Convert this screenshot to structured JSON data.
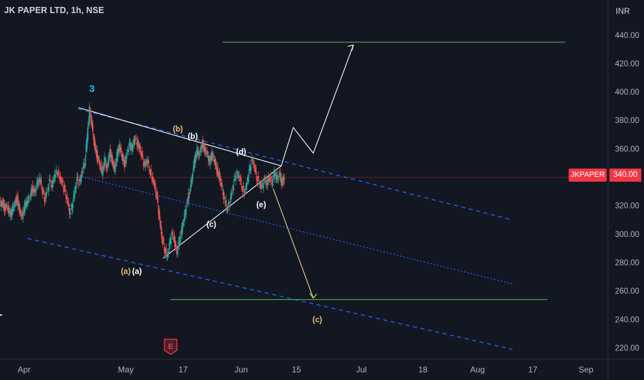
{
  "header": {
    "symbol_title": "JK PAPER LTD, 1h, NSE",
    "currency": "INR"
  },
  "price_tag": {
    "ticker": "JKPAPER",
    "price": "340.00"
  },
  "colors": {
    "background": "#131722",
    "up": "#26a69a",
    "down": "#ef5350",
    "channel": "#2962ff",
    "target_line": "#4caf50",
    "projection_down": "#f0d58c",
    "wave_labels_orange": "#e8c07a",
    "wave_labels_white": "#ffffff",
    "wave3_label": "#26c6da"
  },
  "icons": {
    "event": "earnings-e-icon"
  },
  "chart_data": {
    "type": "candlestick",
    "x_axis_labels": [
      "Apr",
      "May",
      "17",
      "Jun",
      "15",
      "Jul",
      "18",
      "Aug",
      "17",
      "Sep"
    ],
    "y_axis_labels": [
      "440.00",
      "420.00",
      "400.00",
      "380.00",
      "360.00",
      "340.00",
      "320.00",
      "300.00",
      "280.00",
      "260.00",
      "240.00",
      "220.00"
    ],
    "ylim": [
      212,
      453
    ],
    "current_price": 340,
    "wave_labels": [
      {
        "text": "3",
        "x": "Apr 21",
        "y": 400,
        "color": "cyan"
      },
      {
        "text": "(b)",
        "x": "May 15",
        "y": 372,
        "color": "orange"
      },
      {
        "text": "(b)",
        "x": "May 19",
        "y": 367,
        "color": "white"
      },
      {
        "text": "(d)",
        "x": "Jun 1",
        "y": 356,
        "color": "white"
      },
      {
        "text": "(e)",
        "x": "Jun 6",
        "y": 319,
        "color": "white"
      },
      {
        "text": "(c)",
        "x": "May 24",
        "y": 305,
        "color": "white"
      },
      {
        "text": "(a)",
        "x": "May 1",
        "y": 272,
        "color": "orange"
      },
      {
        "text": "(a)",
        "x": "May 4",
        "y": 272,
        "color": "white"
      },
      {
        "text": "(c)",
        "x": "Jun 20",
        "y": 238,
        "color": "orange"
      }
    ],
    "price_path": [
      [
        90.6,
        321
      ],
      [
        90.7,
        322
      ],
      [
        90.8,
        318
      ],
      [
        90.9,
        320
      ],
      [
        91.0,
        314
      ],
      [
        91.1,
        316
      ],
      [
        91.2,
        322
      ],
      [
        91.3,
        325
      ],
      [
        91.4,
        316
      ],
      [
        91.5,
        312
      ],
      [
        91.6,
        320
      ],
      [
        91.7,
        323
      ],
      [
        91.8,
        326
      ],
      [
        91.9,
        332
      ],
      [
        92.0,
        329
      ],
      [
        92.1,
        335
      ],
      [
        92.2,
        339
      ],
      [
        92.3,
        332
      ],
      [
        92.4,
        325
      ],
      [
        92.5,
        330
      ],
      [
        92.6,
        337
      ],
      [
        92.7,
        334
      ],
      [
        92.8,
        342
      ],
      [
        92.9,
        345
      ],
      [
        93.0,
        340
      ],
      [
        93.1,
        336
      ],
      [
        93.2,
        330
      ],
      [
        93.3,
        324
      ],
      [
        93.4,
        316
      ],
      [
        93.5,
        320
      ],
      [
        93.6,
        330
      ],
      [
        93.7,
        338
      ],
      [
        93.8,
        336
      ],
      [
        93.9,
        344
      ],
      [
        94.0,
        350
      ],
      [
        94.1,
        368
      ],
      [
        94.2,
        388
      ],
      [
        94.3,
        375
      ],
      [
        94.4,
        362
      ],
      [
        94.5,
        355
      ],
      [
        94.6,
        350
      ],
      [
        94.7,
        343
      ],
      [
        94.8,
        352
      ],
      [
        94.9,
        346
      ],
      [
        95.0,
        358
      ],
      [
        95.1,
        352
      ],
      [
        95.2,
        345
      ],
      [
        95.3,
        356
      ],
      [
        95.4,
        362
      ],
      [
        95.5,
        355
      ],
      [
        95.6,
        349
      ],
      [
        95.7,
        357
      ],
      [
        95.8,
        363
      ],
      [
        95.9,
        360
      ],
      [
        96.0,
        368
      ],
      [
        96.1,
        365
      ],
      [
        96.2,
        360
      ],
      [
        96.3,
        354
      ],
      [
        96.4,
        348
      ],
      [
        96.5,
        352
      ],
      [
        96.6,
        346
      ],
      [
        96.7,
        340
      ],
      [
        96.8,
        334
      ],
      [
        96.9,
        325
      ],
      [
        97.0,
        310
      ],
      [
        97.1,
        298
      ],
      [
        97.2,
        290
      ],
      [
        97.3,
        284
      ],
      [
        97.4,
        292
      ],
      [
        97.5,
        300
      ],
      [
        97.6,
        295
      ],
      [
        97.7,
        288
      ],
      [
        97.8,
        296
      ],
      [
        97.9,
        304
      ],
      [
        98.0,
        312
      ],
      [
        98.1,
        322
      ],
      [
        98.2,
        330
      ],
      [
        98.3,
        340
      ],
      [
        98.4,
        352
      ],
      [
        98.5,
        358
      ],
      [
        98.6,
        356
      ],
      [
        98.7,
        364
      ],
      [
        98.8,
        360
      ],
      [
        98.9,
        356
      ],
      [
        99.0,
        351
      ],
      [
        99.1,
        356
      ],
      [
        99.2,
        352
      ],
      [
        99.3,
        345
      ],
      [
        99.4,
        340
      ],
      [
        99.5,
        332
      ],
      [
        99.6,
        324
      ],
      [
        99.7,
        318
      ],
      [
        99.8,
        322
      ],
      [
        99.9,
        330
      ],
      [
        100.0,
        338
      ],
      [
        100.1,
        342
      ],
      [
        100.2,
        340
      ],
      [
        100.3,
        334
      ],
      [
        100.4,
        329
      ],
      [
        100.5,
        336
      ],
      [
        100.6,
        344
      ],
      [
        100.7,
        352
      ],
      [
        100.8,
        348
      ],
      [
        100.9,
        340
      ],
      [
        101.0,
        336
      ],
      [
        101.1,
        332
      ],
      [
        101.2,
        338
      ],
      [
        101.3,
        335
      ],
      [
        101.4,
        341
      ],
      [
        101.5,
        336
      ],
      [
        101.6,
        344
      ],
      [
        101.7,
        338
      ],
      [
        101.8,
        342
      ],
      [
        101.9,
        336
      ],
      [
        102.0,
        340
      ]
    ],
    "overlay_lines": [
      {
        "name": "triangle-upper",
        "points": [
          [
            "Apr 17",
            389
          ],
          [
            "Jun 11",
            348
          ]
        ]
      },
      {
        "name": "triangle-lower",
        "points": [
          [
            "May 11",
            283
          ],
          [
            "Jun 11",
            348
          ]
        ]
      },
      {
        "name": "target-top",
        "points": [
          [
            "May 27",
            435
          ],
          [
            "Aug 26",
            435
          ]
        ]
      },
      {
        "name": "target-bottom",
        "points": [
          [
            "May 13",
            254
          ],
          [
            "Aug 21",
            254
          ]
        ]
      }
    ]
  }
}
